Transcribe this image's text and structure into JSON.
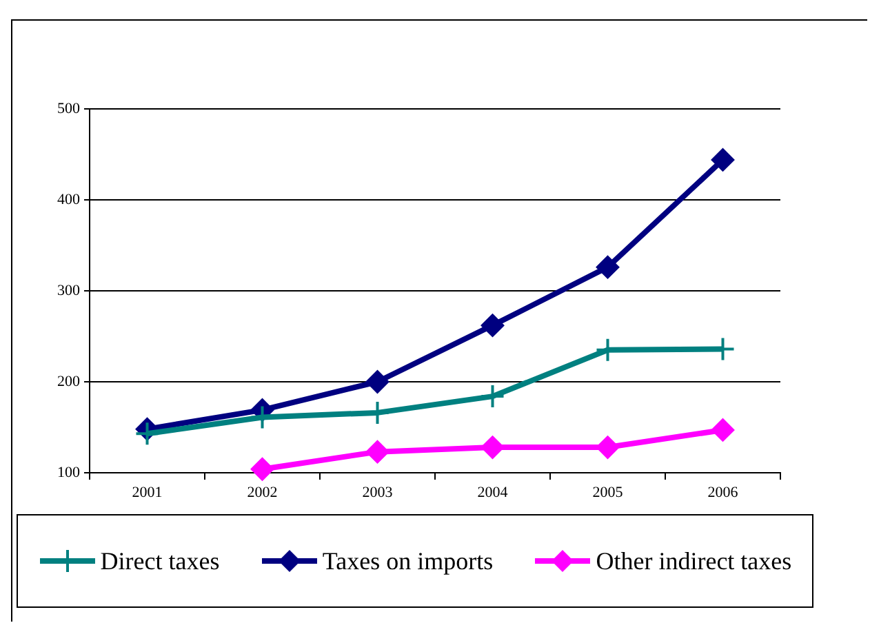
{
  "chart_data": {
    "type": "line",
    "categories": [
      "2001",
      "2002",
      "2003",
      "2004",
      "2005",
      "2006"
    ],
    "series": [
      {
        "name": "Direct taxes",
        "color": "#008080",
        "marker": "cross",
        "values": [
          143,
          161,
          166,
          184,
          235,
          236
        ]
      },
      {
        "name": "Taxes on imports",
        "color": "#000080",
        "marker": "diamond",
        "values": [
          148,
          169,
          200,
          262,
          326,
          444
        ]
      },
      {
        "name": "Other indirect taxes",
        "color": "#ff00ff",
        "marker": "diamond",
        "values": [
          null,
          104,
          123,
          128,
          128,
          147
        ]
      }
    ],
    "ylim": [
      100,
      500
    ],
    "yticks": [
      100,
      200,
      300,
      400,
      500
    ],
    "grid": "y",
    "legend": "bottom"
  }
}
